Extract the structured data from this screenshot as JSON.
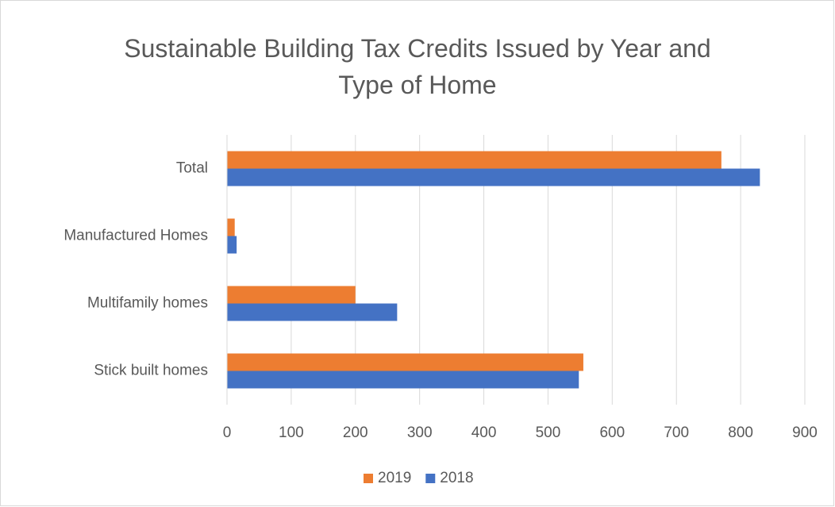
{
  "chart_data": {
    "type": "hbar",
    "title": "Sustainable Building Tax Credits Issued by Year and Type of Home",
    "categories": [
      "Stick built homes",
      "Multifamily homes",
      "Manufactured Homes",
      "Total"
    ],
    "series": [
      {
        "name": "2019",
        "color": "#ed7d31",
        "values": [
          555,
          200,
          12,
          770
        ]
      },
      {
        "name": "2018",
        "color": "#4472c4",
        "values": [
          548,
          265,
          15,
          830
        ]
      }
    ],
    "xlim": [
      0,
      900
    ],
    "xticks": [
      0,
      100,
      200,
      300,
      400,
      500,
      600,
      700,
      800,
      900
    ],
    "grid": true,
    "legend": "bottom"
  }
}
